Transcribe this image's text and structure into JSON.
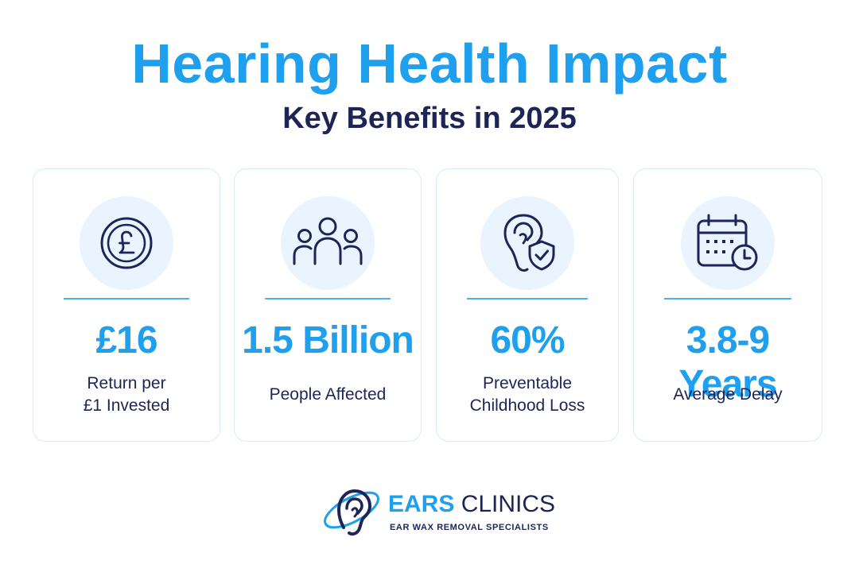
{
  "header": {
    "title": "Hearing Health Impact",
    "subtitle": "Key Benefits in 2025"
  },
  "cards": [
    {
      "icon": "pound-coin-icon",
      "value": "£16",
      "label_lines": [
        "Return per",
        "£1 Invested"
      ]
    },
    {
      "icon": "people-group-icon",
      "value": "1.5 Billion",
      "label_lines": [
        "People Affected"
      ]
    },
    {
      "icon": "ear-shield-icon",
      "value": "60%",
      "label_lines": [
        "Preventable",
        "Childhood Loss"
      ]
    },
    {
      "icon": "calendar-clock-icon",
      "value": "3.8-9 Years",
      "label_lines": [
        "Average Delay"
      ]
    }
  ],
  "footer": {
    "brand_primary": "EARS",
    "brand_secondary": "CLINICS",
    "tagline": "EAR WAX REMOVAL SPECIALISTS"
  },
  "colors": {
    "accent": "#1ea0ee",
    "navy": "#1d2557",
    "icon_bg": "#e9f4fe",
    "card_border": "#d6ebfa"
  }
}
